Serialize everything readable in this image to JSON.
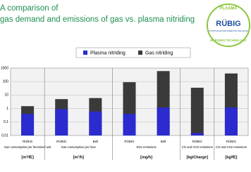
{
  "chart_data": {
    "type": "bar",
    "title": "A comparison of gas demand and emissions of gas vs. plasma nitriding",
    "logo": {
      "top": "PLASMA",
      "brand": "RÜBIG",
      "tagline": "POSITIVE ENVIRONMENTAL BALANCE",
      "bottom": "NITRIDING TECHNOLOGY"
    },
    "groups": [
      {
        "name": "Gas consumption per functional unit",
        "unit": "[m³/fE]",
        "categories": [
          "RÜBIG"
        ]
      },
      {
        "name": "Gas consumption per hour",
        "unit": "[m³/h]",
        "categories": [
          "RÜBIG",
          "Bell"
        ]
      },
      {
        "name": "NOx emissions",
        "unit": "[mg/h]",
        "categories": [
          "RÜBIG",
          "Bell"
        ]
      },
      {
        "name": "CO and CO2 emissions",
        "unit": "[kg/Charge]",
        "categories": [
          "RÜBIG"
        ]
      },
      {
        "name": "CO and CO2 emissions",
        "unit": "[kg/fE]",
        "categories": [
          "RÜBIG"
        ]
      }
    ],
    "series": [
      {
        "name": "Gas nitriding",
        "color": "#3a3a3a",
        "values": [
          1.5,
          5,
          6,
          90,
          600,
          35,
          400
        ]
      },
      {
        "name": "Plasma nitriding",
        "color": "#2b2bd0",
        "values": [
          0.4,
          0.9,
          0.6,
          0.4,
          1.2,
          0.015,
          1.2
        ]
      }
    ],
    "log_scale": true,
    "ylim": [
      0.01,
      1000
    ],
    "yticks": [
      {
        "value": 0.01,
        "label": "0,01"
      },
      {
        "value": 0.1,
        "label": "0,1"
      },
      1,
      10,
      100,
      1000
    ],
    "grid": true
  }
}
